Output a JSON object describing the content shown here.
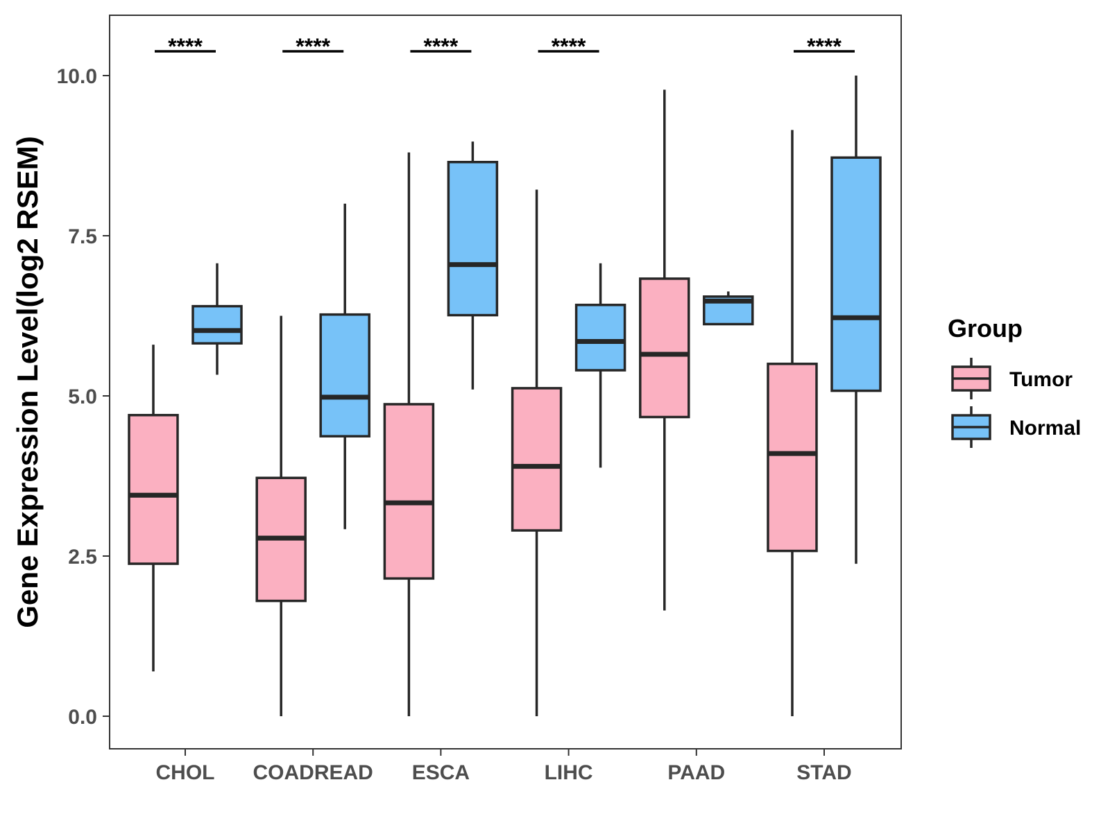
{
  "chart_data": {
    "type": "boxplot",
    "title": "",
    "xlabel": "",
    "ylabel": "Gene Expression Level(log2 RSEM)",
    "ylim": [
      -0.5,
      10.95
    ],
    "yticks": [
      0.0,
      2.5,
      5.0,
      7.5,
      10.0
    ],
    "ytick_labels": [
      "0.0",
      "2.5",
      "5.0",
      "7.5",
      "10.0"
    ],
    "categories": [
      "CHOL",
      "COADREAD",
      "ESCA",
      "LIHC",
      "PAAD",
      "STAD"
    ],
    "series": [
      {
        "name": "Tumor",
        "color": "#FBB0C1",
        "boxes": [
          {
            "min": 0.7,
            "q1": 2.38,
            "median": 3.45,
            "q3": 4.7,
            "max": 5.8
          },
          {
            "min": 0.0,
            "q1": 1.8,
            "median": 2.78,
            "q3": 3.72,
            "max": 6.25
          },
          {
            "min": 0.0,
            "q1": 2.15,
            "median": 3.33,
            "q3": 4.87,
            "max": 8.8
          },
          {
            "min": 0.0,
            "q1": 2.9,
            "median": 3.9,
            "q3": 5.12,
            "max": 8.22
          },
          {
            "min": 1.65,
            "q1": 4.67,
            "median": 5.65,
            "q3": 6.83,
            "max": 9.78
          },
          {
            "min": 0.0,
            "q1": 2.58,
            "median": 4.1,
            "q3": 5.5,
            "max": 9.15
          }
        ]
      },
      {
        "name": "Normal",
        "color": "#77C2F8",
        "boxes": [
          {
            "min": 5.33,
            "q1": 5.82,
            "median": 6.02,
            "q3": 6.4,
            "max": 7.07
          },
          {
            "min": 2.92,
            "q1": 4.37,
            "median": 4.98,
            "q3": 6.27,
            "max": 8.0
          },
          {
            "min": 5.1,
            "q1": 6.26,
            "median": 7.05,
            "q3": 8.65,
            "max": 8.97
          },
          {
            "min": 3.88,
            "q1": 5.4,
            "median": 5.85,
            "q3": 6.42,
            "max": 7.07
          },
          {
            "min": 6.12,
            "q1": 6.12,
            "median": 6.48,
            "q3": 6.55,
            "max": 6.63
          },
          {
            "min": 2.38,
            "q1": 5.08,
            "median": 6.22,
            "q3": 8.72,
            "max": 10.0
          }
        ]
      }
    ],
    "annotations": [
      {
        "category": "CHOL",
        "text": "****"
      },
      {
        "category": "COADREAD",
        "text": "****"
      },
      {
        "category": "ESCA",
        "text": "****"
      },
      {
        "category": "LIHC",
        "text": "****"
      },
      {
        "category": "STAD",
        "text": "****"
      }
    ],
    "legend": {
      "title": "Group",
      "position": "right",
      "items": [
        "Tumor",
        "Normal"
      ]
    },
    "grid": false
  }
}
